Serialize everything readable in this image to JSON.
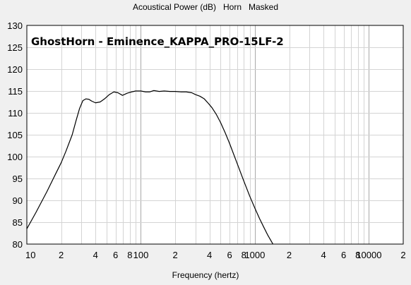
{
  "chart_data": {
    "type": "line",
    "title": "Acoustical Power (dB)   Horn   Masked",
    "subtitle": "GhostHorn - Eminence_KAPPA_PRO-15LF-2",
    "xlabel": "Frequency (hertz)",
    "ylabel": "",
    "x_scale": "log",
    "xlim": [
      10,
      20000
    ],
    "ylim": [
      80,
      130
    ],
    "grid": true,
    "y_ticks": [
      80,
      85,
      90,
      95,
      100,
      105,
      110,
      115,
      120,
      125,
      130
    ],
    "x_tick_labels": [
      {
        "value": 10,
        "label": "10"
      },
      {
        "value": 20,
        "label": "2"
      },
      {
        "value": 40,
        "label": "4"
      },
      {
        "value": 60,
        "label": "6"
      },
      {
        "value": 80,
        "label": "8"
      },
      {
        "value": 100,
        "label": "100"
      },
      {
        "value": 200,
        "label": "2"
      },
      {
        "value": 400,
        "label": "4"
      },
      {
        "value": 600,
        "label": "6"
      },
      {
        "value": 800,
        "label": "8"
      },
      {
        "value": 1000,
        "label": "1000"
      },
      {
        "value": 2000,
        "label": "2"
      },
      {
        "value": 4000,
        "label": "4"
      },
      {
        "value": 6000,
        "label": "6"
      },
      {
        "value": 8000,
        "label": "8"
      },
      {
        "value": 10000,
        "label": "10000"
      },
      {
        "value": 20000,
        "label": "2"
      }
    ],
    "series": [
      {
        "color": "#000000",
        "x": [
          10,
          12,
          15,
          18,
          20,
          22,
          25,
          27,
          29,
          31,
          33,
          35,
          37,
          40,
          44,
          48,
          53,
          58,
          63,
          69,
          76,
          83,
          90,
          100,
          110,
          120,
          130,
          145,
          160,
          180,
          200,
          225,
          250,
          280,
          300,
          330,
          360,
          390,
          420,
          460,
          500,
          550,
          600,
          700,
          800,
          900,
          1000,
          1100,
          1200,
          1300,
          1500
        ],
        "y": [
          83.5,
          87.2,
          92.0,
          96.2,
          98.6,
          101.2,
          105.0,
          108.2,
          111.0,
          112.8,
          113.2,
          113.1,
          112.7,
          112.3,
          112.5,
          113.2,
          114.2,
          114.8,
          114.6,
          114.0,
          114.5,
          114.8,
          115.0,
          115.0,
          114.8,
          114.8,
          115.1,
          114.9,
          115.0,
          114.9,
          114.9,
          114.8,
          114.8,
          114.6,
          114.2,
          113.8,
          113.2,
          112.2,
          111.2,
          109.6,
          107.8,
          105.4,
          103.0,
          98.4,
          94.4,
          91.0,
          88.2,
          85.8,
          83.8,
          82.0,
          79.2
        ]
      }
    ]
  }
}
